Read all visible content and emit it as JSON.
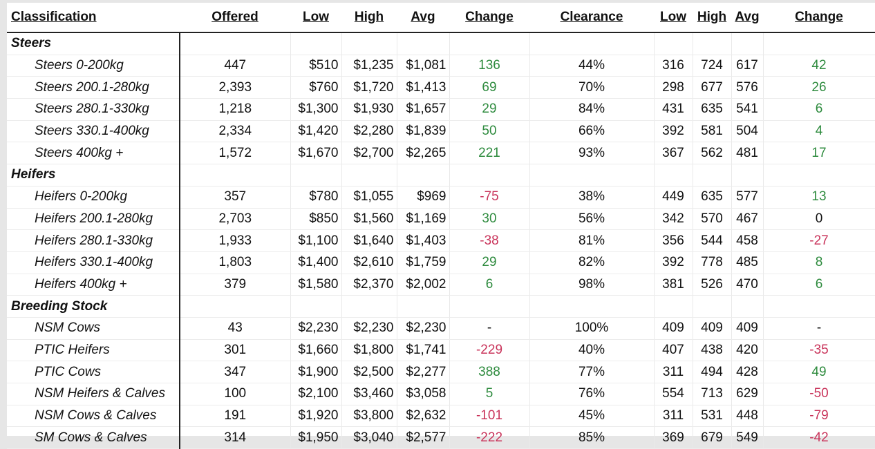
{
  "chart_data": {
    "type": "table",
    "columns": [
      "Classification",
      "Offered",
      "Low",
      "High",
      "Avg",
      "Change",
      "Clearance",
      "Low",
      "High",
      "Avg",
      "Change"
    ],
    "groups": [
      {
        "name": "Steers",
        "rows": [
          {
            "label": "Steers 0-200kg",
            "offered": "447",
            "low": "$510",
            "high": "$1,235",
            "avg": "$1,081",
            "change": "136",
            "clearance": "44%",
            "low2": "316",
            "high2": "724",
            "avg2": "617",
            "change2": "42"
          },
          {
            "label": "Steers 200.1-280kg",
            "offered": "2,393",
            "low": "$760",
            "high": "$1,720",
            "avg": "$1,413",
            "change": "69",
            "clearance": "70%",
            "low2": "298",
            "high2": "677",
            "avg2": "576",
            "change2": "26"
          },
          {
            "label": "Steers 280.1-330kg",
            "offered": "1,218",
            "low": "$1,300",
            "high": "$1,930",
            "avg": "$1,657",
            "change": "29",
            "clearance": "84%",
            "low2": "431",
            "high2": "635",
            "avg2": "541",
            "change2": "6"
          },
          {
            "label": "Steers 330.1-400kg",
            "offered": "2,334",
            "low": "$1,420",
            "high": "$2,280",
            "avg": "$1,839",
            "change": "50",
            "clearance": "66%",
            "low2": "392",
            "high2": "581",
            "avg2": "504",
            "change2": "4"
          },
          {
            "label": "Steers 400kg +",
            "offered": "1,572",
            "low": "$1,670",
            "high": "$2,700",
            "avg": "$2,265",
            "change": "221",
            "clearance": "93%",
            "low2": "367",
            "high2": "562",
            "avg2": "481",
            "change2": "17"
          }
        ]
      },
      {
        "name": "Heifers",
        "rows": [
          {
            "label": "Heifers 0-200kg",
            "offered": "357",
            "low": "$780",
            "high": "$1,055",
            "avg": "$969",
            "change": "-75",
            "clearance": "38%",
            "low2": "449",
            "high2": "635",
            "avg2": "577",
            "change2": "13"
          },
          {
            "label": "Heifers 200.1-280kg",
            "offered": "2,703",
            "low": "$850",
            "high": "$1,560",
            "avg": "$1,169",
            "change": "30",
            "clearance": "56%",
            "low2": "342",
            "high2": "570",
            "avg2": "467",
            "change2": "0"
          },
          {
            "label": "Heifers 280.1-330kg",
            "offered": "1,933",
            "low": "$1,100",
            "high": "$1,640",
            "avg": "$1,403",
            "change": "-38",
            "clearance": "81%",
            "low2": "356",
            "high2": "544",
            "avg2": "458",
            "change2": "-27"
          },
          {
            "label": "Heifers 330.1-400kg",
            "offered": "1,803",
            "low": "$1,400",
            "high": "$2,610",
            "avg": "$1,759",
            "change": "29",
            "clearance": "82%",
            "low2": "392",
            "high2": "778",
            "avg2": "485",
            "change2": "8"
          },
          {
            "label": "Heifers 400kg +",
            "offered": "379",
            "low": "$1,580",
            "high": "$2,370",
            "avg": "$2,002",
            "change": "6",
            "clearance": "98%",
            "low2": "381",
            "high2": "526",
            "avg2": "470",
            "change2": "6"
          }
        ]
      },
      {
        "name": "Breeding Stock",
        "rows": [
          {
            "label": "NSM Cows",
            "offered": "43",
            "low": "$2,230",
            "high": "$2,230",
            "avg": "$2,230",
            "change": "-",
            "clearance": "100%",
            "low2": "409",
            "high2": "409",
            "avg2": "409",
            "change2": "-"
          },
          {
            "label": "PTIC Heifers",
            "offered": "301",
            "low": "$1,660",
            "high": "$1,800",
            "avg": "$1,741",
            "change": "-229",
            "clearance": "40%",
            "low2": "407",
            "high2": "438",
            "avg2": "420",
            "change2": "-35"
          },
          {
            "label": "PTIC Cows",
            "offered": "347",
            "low": "$1,900",
            "high": "$2,500",
            "avg": "$2,277",
            "change": "388",
            "clearance": "77%",
            "low2": "311",
            "high2": "494",
            "avg2": "428",
            "change2": "49"
          },
          {
            "label": "NSM Heifers & Calves",
            "offered": "100",
            "low": "$2,100",
            "high": "$3,460",
            "avg": "$3,058",
            "change": "5",
            "clearance": "76%",
            "low2": "554",
            "high2": "713",
            "avg2": "629",
            "change2": "-50"
          },
          {
            "label": "NSM Cows & Calves",
            "offered": "191",
            "low": "$1,920",
            "high": "$3,800",
            "avg": "$2,632",
            "change": "-101",
            "clearance": "45%",
            "low2": "311",
            "high2": "531",
            "avg2": "448",
            "change2": "-79"
          },
          {
            "label": "SM Cows & Calves",
            "offered": "314",
            "low": "$1,950",
            "high": "$3,040",
            "avg": "$2,577",
            "change": "-222",
            "clearance": "85%",
            "low2": "369",
            "high2": "679",
            "avg2": "549",
            "change2": "-42"
          }
        ]
      }
    ],
    "colors": {
      "positive": "#2e8b3e",
      "negative": "#c9335a",
      "neutral": "#111111"
    }
  }
}
